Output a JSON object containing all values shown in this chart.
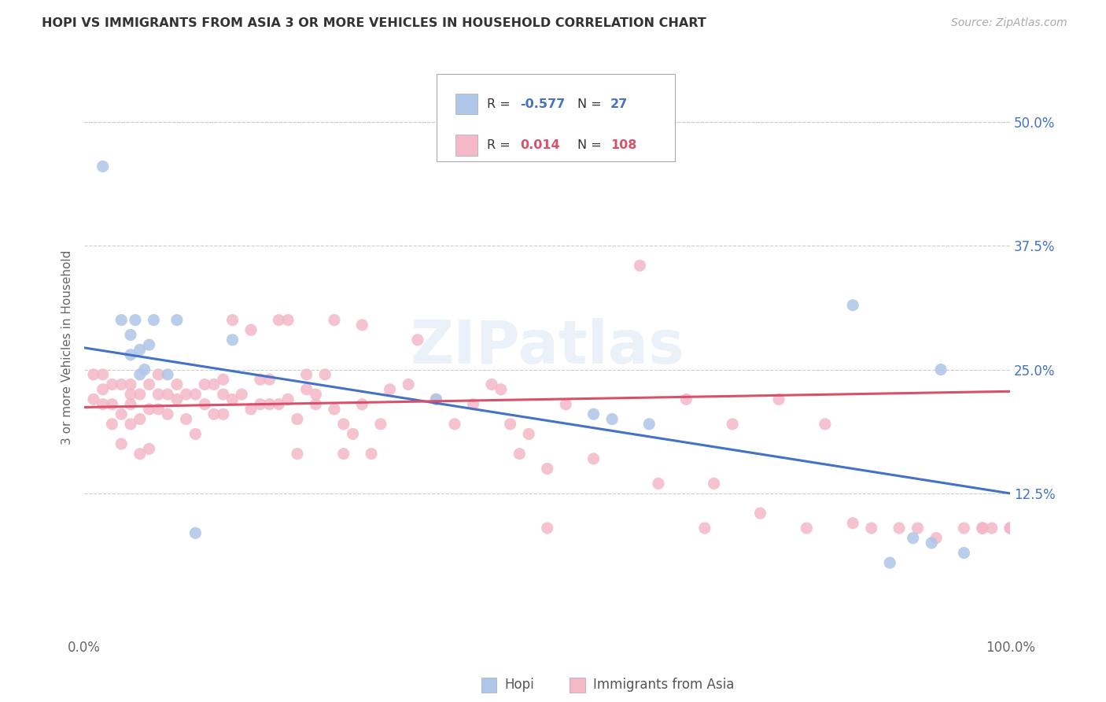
{
  "title": "HOPI VS IMMIGRANTS FROM ASIA 3 OR MORE VEHICLES IN HOUSEHOLD CORRELATION CHART",
  "source": "Source: ZipAtlas.com",
  "ylabel": "3 or more Vehicles in Household",
  "ytick_labels": [
    "",
    "12.5%",
    "25.0%",
    "37.5%",
    "50.0%"
  ],
  "ytick_values": [
    0.0,
    0.125,
    0.25,
    0.375,
    0.5
  ],
  "xlim": [
    0.0,
    1.0
  ],
  "ylim": [
    -0.02,
    0.565
  ],
  "hopi_color": "#aec6e8",
  "immigrants_color": "#f4b8c8",
  "hopi_line_color": "#4472c4",
  "immigrants_line_color": "#d9506a",
  "hopi_line_x0": 0.0,
  "hopi_line_y0": 0.272,
  "hopi_line_x1": 1.0,
  "hopi_line_y1": 0.125,
  "imm_line_x0": 0.0,
  "imm_line_y0": 0.212,
  "imm_line_x1": 1.0,
  "imm_line_y1": 0.228,
  "hopi_scatter_x": [
    0.02,
    0.04,
    0.05,
    0.05,
    0.055,
    0.06,
    0.06,
    0.065,
    0.07,
    0.075,
    0.09,
    0.1,
    0.12,
    0.16,
    0.38,
    0.55,
    0.57,
    0.61,
    0.83,
    0.87,
    0.895,
    0.915,
    0.925,
    0.95
  ],
  "hopi_scatter_y": [
    0.455,
    0.3,
    0.285,
    0.265,
    0.3,
    0.27,
    0.245,
    0.25,
    0.275,
    0.3,
    0.245,
    0.3,
    0.085,
    0.28,
    0.22,
    0.205,
    0.2,
    0.195,
    0.315,
    0.055,
    0.08,
    0.075,
    0.25,
    0.065
  ],
  "immigrants_scatter_x": [
    0.01,
    0.01,
    0.02,
    0.02,
    0.02,
    0.03,
    0.03,
    0.03,
    0.04,
    0.04,
    0.04,
    0.05,
    0.05,
    0.05,
    0.05,
    0.06,
    0.06,
    0.06,
    0.07,
    0.07,
    0.07,
    0.08,
    0.08,
    0.08,
    0.09,
    0.09,
    0.1,
    0.1,
    0.11,
    0.11,
    0.12,
    0.12,
    0.13,
    0.13,
    0.14,
    0.14,
    0.15,
    0.15,
    0.15,
    0.16,
    0.16,
    0.17,
    0.18,
    0.18,
    0.19,
    0.19,
    0.2,
    0.2,
    0.21,
    0.21,
    0.22,
    0.22,
    0.23,
    0.23,
    0.24,
    0.24,
    0.25,
    0.25,
    0.26,
    0.27,
    0.27,
    0.28,
    0.28,
    0.29,
    0.3,
    0.3,
    0.31,
    0.32,
    0.33,
    0.35,
    0.36,
    0.38,
    0.4,
    0.42,
    0.44,
    0.45,
    0.46,
    0.47,
    0.48,
    0.5,
    0.5,
    0.52,
    0.55,
    0.6,
    0.62,
    0.65,
    0.67,
    0.68,
    0.7,
    0.73,
    0.75,
    0.78,
    0.8,
    0.83,
    0.85,
    0.88,
    0.9,
    0.92,
    0.95,
    0.97,
    0.97,
    0.97,
    0.98,
    1.0,
    1.0,
    1.0,
    1.0,
    1.0
  ],
  "immigrants_scatter_y": [
    0.22,
    0.245,
    0.215,
    0.23,
    0.245,
    0.195,
    0.215,
    0.235,
    0.175,
    0.205,
    0.235,
    0.195,
    0.215,
    0.225,
    0.235,
    0.165,
    0.2,
    0.225,
    0.17,
    0.21,
    0.235,
    0.21,
    0.225,
    0.245,
    0.205,
    0.225,
    0.22,
    0.235,
    0.2,
    0.225,
    0.185,
    0.225,
    0.215,
    0.235,
    0.205,
    0.235,
    0.205,
    0.225,
    0.24,
    0.22,
    0.3,
    0.225,
    0.21,
    0.29,
    0.215,
    0.24,
    0.215,
    0.24,
    0.215,
    0.3,
    0.22,
    0.3,
    0.165,
    0.2,
    0.23,
    0.245,
    0.215,
    0.225,
    0.245,
    0.21,
    0.3,
    0.165,
    0.195,
    0.185,
    0.215,
    0.295,
    0.165,
    0.195,
    0.23,
    0.235,
    0.28,
    0.22,
    0.195,
    0.215,
    0.235,
    0.23,
    0.195,
    0.165,
    0.185,
    0.15,
    0.09,
    0.215,
    0.16,
    0.355,
    0.135,
    0.22,
    0.09,
    0.135,
    0.195,
    0.105,
    0.22,
    0.09,
    0.195,
    0.095,
    0.09,
    0.09,
    0.09,
    0.08,
    0.09,
    0.09,
    0.09,
    0.09,
    0.09,
    0.09,
    0.09,
    0.09,
    0.09,
    0.09
  ]
}
